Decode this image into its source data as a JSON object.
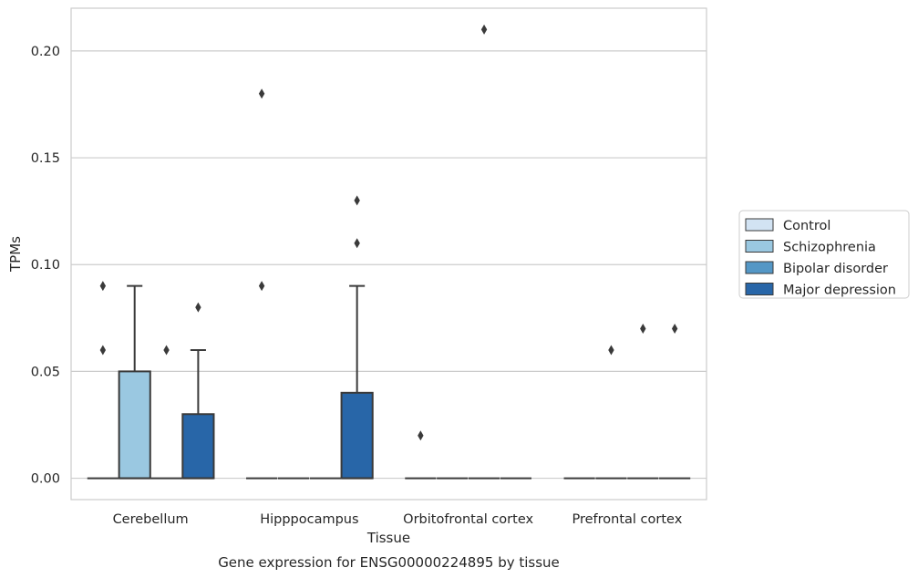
{
  "chart_data": {
    "type": "box",
    "title": "",
    "caption": "Gene expression for ENSG00000224895 by tissue",
    "xlabel": "Tissue",
    "ylabel": "TPMs",
    "ylim": [
      -0.01,
      0.22
    ],
    "yticks": [
      "0.00",
      "0.05",
      "0.10",
      "0.15",
      "0.20"
    ],
    "grid": true,
    "legend_position": "right",
    "categories": [
      "Cerebellum",
      "Hipppocampus",
      "Orbitofrontal cortex",
      "Prefrontal cortex"
    ],
    "series": [
      {
        "name": "Control",
        "color": "#d2e3f3"
      },
      {
        "name": "Schizophrenia",
        "color": "#9ac8e1"
      },
      {
        "name": "Bipolar disorder",
        "color": "#5497c6"
      },
      {
        "name": "Major depression",
        "color": "#2866a8"
      }
    ],
    "boxes": [
      {
        "category": "Cerebellum",
        "series": "Control",
        "q1": 0,
        "median": 0,
        "q3": 0,
        "whisker_low": 0,
        "whisker_high": 0,
        "outliers": [
          0.06,
          0.09
        ]
      },
      {
        "category": "Cerebellum",
        "series": "Schizophrenia",
        "q1": 0,
        "median": 0,
        "q3": 0.05,
        "whisker_low": 0,
        "whisker_high": 0.09,
        "outliers": []
      },
      {
        "category": "Cerebellum",
        "series": "Bipolar disorder",
        "q1": 0,
        "median": 0,
        "q3": 0,
        "whisker_low": 0,
        "whisker_high": 0,
        "outliers": [
          0.06
        ]
      },
      {
        "category": "Cerebellum",
        "series": "Major depression",
        "q1": 0,
        "median": 0,
        "q3": 0.03,
        "whisker_low": 0,
        "whisker_high": 0.06,
        "outliers": [
          0.08
        ]
      },
      {
        "category": "Hipppocampus",
        "series": "Control",
        "q1": 0,
        "median": 0,
        "q3": 0,
        "whisker_low": 0,
        "whisker_high": 0,
        "outliers": [
          0.09,
          0.18
        ]
      },
      {
        "category": "Hipppocampus",
        "series": "Schizophrenia",
        "q1": 0,
        "median": 0,
        "q3": 0,
        "whisker_low": 0,
        "whisker_high": 0,
        "outliers": []
      },
      {
        "category": "Hipppocampus",
        "series": "Bipolar disorder",
        "q1": 0,
        "median": 0,
        "q3": 0,
        "whisker_low": 0,
        "whisker_high": 0,
        "outliers": []
      },
      {
        "category": "Hipppocampus",
        "series": "Major depression",
        "q1": 0,
        "median": 0,
        "q3": 0.04,
        "whisker_low": 0,
        "whisker_high": 0.09,
        "outliers": [
          0.11,
          0.13
        ]
      },
      {
        "category": "Orbitofrontal cortex",
        "series": "Control",
        "q1": 0,
        "median": 0,
        "q3": 0,
        "whisker_low": 0,
        "whisker_high": 0,
        "outliers": [
          0.02
        ]
      },
      {
        "category": "Orbitofrontal cortex",
        "series": "Schizophrenia",
        "q1": 0,
        "median": 0,
        "q3": 0,
        "whisker_low": 0,
        "whisker_high": 0,
        "outliers": []
      },
      {
        "category": "Orbitofrontal cortex",
        "series": "Bipolar disorder",
        "q1": 0,
        "median": 0,
        "q3": 0,
        "whisker_low": 0,
        "whisker_high": 0,
        "outliers": [
          0.21
        ]
      },
      {
        "category": "Orbitofrontal cortex",
        "series": "Major depression",
        "q1": 0,
        "median": 0,
        "q3": 0,
        "whisker_low": 0,
        "whisker_high": 0,
        "outliers": []
      },
      {
        "category": "Prefrontal cortex",
        "series": "Control",
        "q1": 0,
        "median": 0,
        "q3": 0,
        "whisker_low": 0,
        "whisker_high": 0,
        "outliers": []
      },
      {
        "category": "Prefrontal cortex",
        "series": "Schizophrenia",
        "q1": 0,
        "median": 0,
        "q3": 0,
        "whisker_low": 0,
        "whisker_high": 0,
        "outliers": [
          0.06
        ]
      },
      {
        "category": "Prefrontal cortex",
        "series": "Bipolar disorder",
        "q1": 0,
        "median": 0,
        "q3": 0,
        "whisker_low": 0,
        "whisker_high": 0,
        "outliers": [
          0.07
        ]
      },
      {
        "category": "Prefrontal cortex",
        "series": "Major depression",
        "q1": 0,
        "median": 0,
        "q3": 0,
        "whisker_low": 0,
        "whisker_high": 0,
        "outliers": [
          0.07
        ]
      }
    ]
  }
}
